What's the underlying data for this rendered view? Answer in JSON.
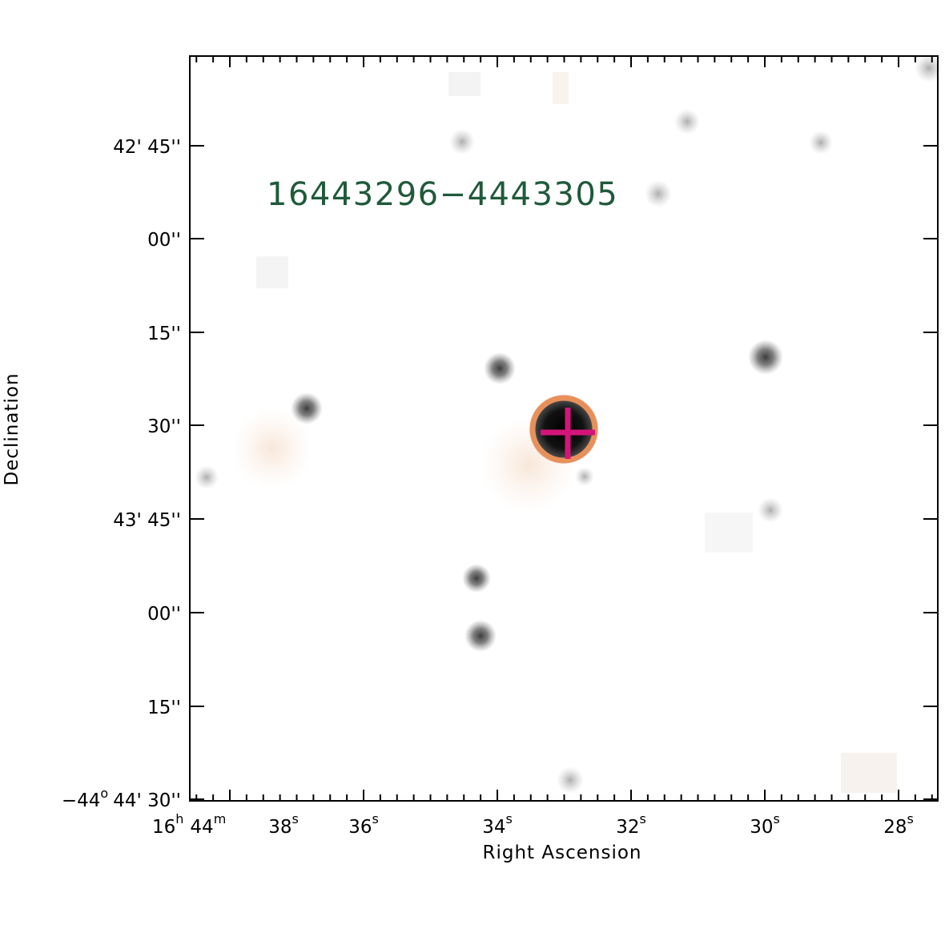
{
  "image": {
    "source_label": "16443296−4443305",
    "source_label_color": "#1f5a3a",
    "xlabel": "Right Ascension",
    "ylabel": "Declination",
    "marker_circle_color": "#e8905a",
    "marker_cross_color": "#d4147a"
  },
  "dec_ticks": [
    {
      "main": "42' 45''",
      "prefix": ""
    },
    {
      "main": "00''",
      "prefix": ""
    },
    {
      "main": "15''",
      "prefix": ""
    },
    {
      "main": "30''",
      "prefix": ""
    },
    {
      "main": "43' 45''",
      "prefix": ""
    },
    {
      "main": "00''",
      "prefix": ""
    },
    {
      "main": "15''",
      "prefix": ""
    },
    {
      "main": "44' 30''",
      "prefix": "−44",
      "prefix_sup": "o"
    }
  ],
  "ra_ticks": [
    {
      "lead": "16",
      "lead_sup": "h",
      "main": "44",
      "sup": "m"
    },
    {
      "main": "38",
      "sup": "s"
    },
    {
      "main": "36",
      "sup": "s"
    },
    {
      "main": "34",
      "sup": "s"
    },
    {
      "main": "32",
      "sup": "s"
    },
    {
      "main": "30",
      "sup": "s"
    },
    {
      "main": "28",
      "sup": "s"
    }
  ]
}
